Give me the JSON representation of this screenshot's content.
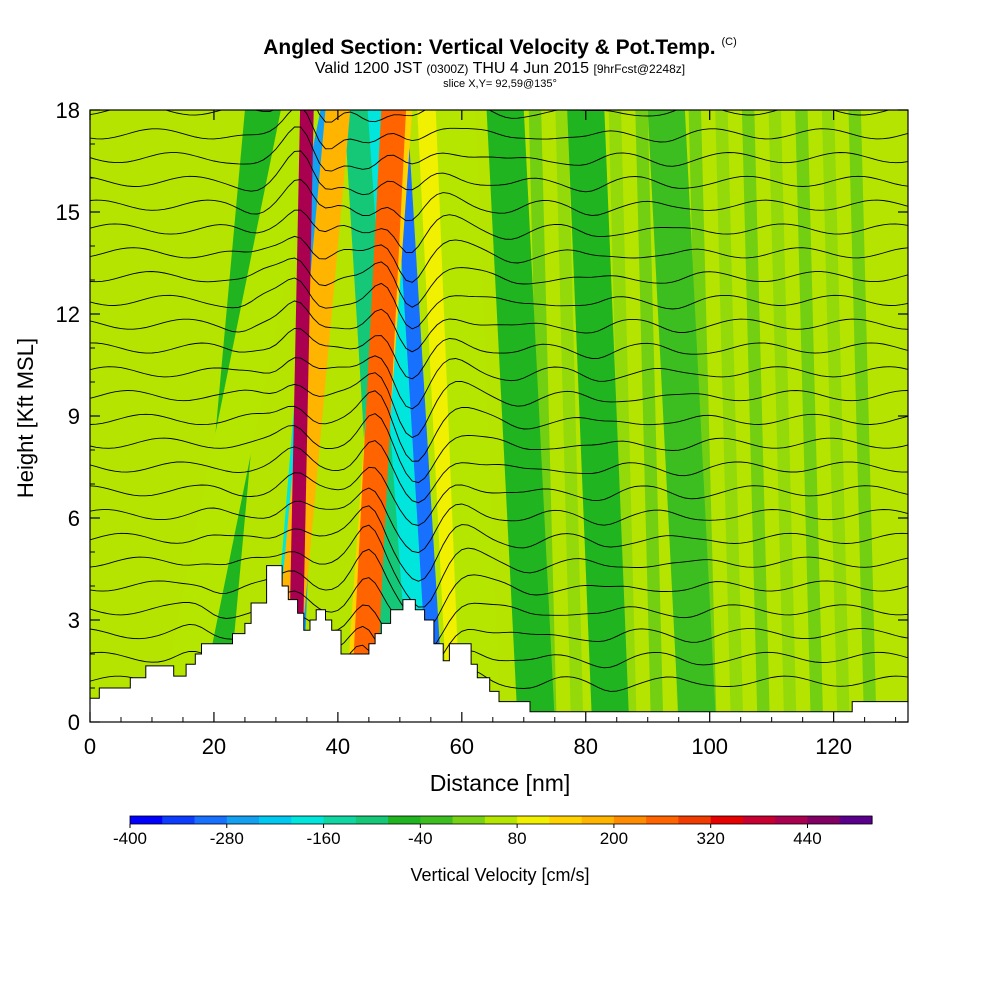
{
  "header": {
    "title": "Angled Section: Vertical Velocity & Pot.Temp.",
    "title_units": "(C)",
    "valid_prefix": "Valid 1200 JST",
    "valid_utc": "(0300Z)",
    "valid_date": "THU 4 Jun 2015",
    "forecast_tag": "[9hrFcst@2248z]",
    "slice": "slice X,Y= 92,59@135°"
  },
  "chart_data": {
    "type": "heatmap",
    "xlabel": "Distance [nm]",
    "ylabel": "Height [Kft MSL]",
    "xlim": [
      0,
      132
    ],
    "ylim": [
      0,
      18
    ],
    "xticks": [
      0,
      20,
      40,
      60,
      80,
      100,
      120
    ],
    "yticks": [
      0,
      3,
      6,
      9,
      12,
      15,
      18
    ],
    "background_color": "#b5e400",
    "contour_color": "#000000",
    "updraft_bands": [
      {
        "x_low": 14,
        "x_top": 34,
        "value": 60
      },
      {
        "x_low": 31,
        "x_top": 40,
        "value": 160
      },
      {
        "x_low": 33,
        "x_top": 35,
        "value": 420
      },
      {
        "x_low": 43,
        "x_top": 50,
        "value": 140
      },
      {
        "x_low": 44,
        "x_top": 49,
        "value": 240
      },
      {
        "x_low": 61,
        "x_top": 56,
        "value": 80
      },
      {
        "x_low": 63,
        "x_top": 59,
        "value": 40
      }
    ],
    "downdraft_bands": [
      {
        "x_low": 19,
        "x_top": 28,
        "value": -60
      },
      {
        "x_low": 31,
        "x_top": 39,
        "value": -180
      },
      {
        "x_low": 33,
        "x_top": 37,
        "value": -260
      },
      {
        "x_low": 50,
        "x_top": 44,
        "value": -100
      },
      {
        "x_low": 54,
        "x_top": 47,
        "value": -180
      },
      {
        "x_low": 56,
        "x_top": 50,
        "value": -300
      },
      {
        "x_low": 72,
        "x_top": 67,
        "value": -60
      },
      {
        "x_low": 84,
        "x_top": 80,
        "value": -60
      },
      {
        "x_low": 98,
        "x_top": 93,
        "value": -40
      }
    ],
    "terrain": [
      {
        "x": 0.0,
        "h": 0.7
      },
      {
        "x": 1.5,
        "h": 0.7
      },
      {
        "x": 1.5,
        "h": 1.0
      },
      {
        "x": 6.5,
        "h": 1.0
      },
      {
        "x": 6.5,
        "h": 1.3
      },
      {
        "x": 9.0,
        "h": 1.3
      },
      {
        "x": 9.0,
        "h": 1.65
      },
      {
        "x": 13.5,
        "h": 1.65
      },
      {
        "x": 13.5,
        "h": 1.35
      },
      {
        "x": 15.5,
        "h": 1.35
      },
      {
        "x": 15.5,
        "h": 1.7
      },
      {
        "x": 17.0,
        "h": 1.7
      },
      {
        "x": 17.0,
        "h": 2.0
      },
      {
        "x": 18.0,
        "h": 2.0
      },
      {
        "x": 18.0,
        "h": 2.3
      },
      {
        "x": 23.0,
        "h": 2.3
      },
      {
        "x": 23.0,
        "h": 2.6
      },
      {
        "x": 25.0,
        "h": 2.6
      },
      {
        "x": 25.0,
        "h": 2.9
      },
      {
        "x": 26.0,
        "h": 2.9
      },
      {
        "x": 26.0,
        "h": 3.5
      },
      {
        "x": 28.5,
        "h": 3.5
      },
      {
        "x": 28.5,
        "h": 4.6
      },
      {
        "x": 31.0,
        "h": 4.6
      },
      {
        "x": 31.0,
        "h": 4.0
      },
      {
        "x": 32.0,
        "h": 4.0
      },
      {
        "x": 32.0,
        "h": 3.6
      },
      {
        "x": 33.5,
        "h": 3.6
      },
      {
        "x": 33.5,
        "h": 3.2
      },
      {
        "x": 34.5,
        "h": 3.2
      },
      {
        "x": 34.5,
        "h": 2.7
      },
      {
        "x": 35.5,
        "h": 2.7
      },
      {
        "x": 35.5,
        "h": 3.0
      },
      {
        "x": 36.5,
        "h": 3.0
      },
      {
        "x": 36.5,
        "h": 3.3
      },
      {
        "x": 38.0,
        "h": 3.3
      },
      {
        "x": 38.0,
        "h": 3.0
      },
      {
        "x": 39.0,
        "h": 3.0
      },
      {
        "x": 39.0,
        "h": 2.7
      },
      {
        "x": 40.5,
        "h": 2.7
      },
      {
        "x": 40.5,
        "h": 2.0
      },
      {
        "x": 45.0,
        "h": 2.0
      },
      {
        "x": 45.0,
        "h": 2.3
      },
      {
        "x": 46.0,
        "h": 2.3
      },
      {
        "x": 46.0,
        "h": 2.6
      },
      {
        "x": 47.0,
        "h": 2.6
      },
      {
        "x": 47.0,
        "h": 2.9
      },
      {
        "x": 48.5,
        "h": 2.9
      },
      {
        "x": 48.5,
        "h": 3.3
      },
      {
        "x": 50.5,
        "h": 3.3
      },
      {
        "x": 50.5,
        "h": 3.6
      },
      {
        "x": 52.5,
        "h": 3.6
      },
      {
        "x": 52.5,
        "h": 3.3
      },
      {
        "x": 54.0,
        "h": 3.3
      },
      {
        "x": 54.0,
        "h": 3.0
      },
      {
        "x": 55.5,
        "h": 3.0
      },
      {
        "x": 55.5,
        "h": 2.3
      },
      {
        "x": 57.0,
        "h": 2.3
      },
      {
        "x": 57.0,
        "h": 1.8
      },
      {
        "x": 58.0,
        "h": 1.8
      },
      {
        "x": 58.0,
        "h": 2.3
      },
      {
        "x": 61.5,
        "h": 2.3
      },
      {
        "x": 61.5,
        "h": 1.7
      },
      {
        "x": 62.5,
        "h": 1.7
      },
      {
        "x": 62.5,
        "h": 1.3
      },
      {
        "x": 64.5,
        "h": 1.3
      },
      {
        "x": 64.5,
        "h": 0.9
      },
      {
        "x": 66.0,
        "h": 0.9
      },
      {
        "x": 66.0,
        "h": 0.6
      },
      {
        "x": 71.0,
        "h": 0.6
      },
      {
        "x": 71.0,
        "h": 0.3
      },
      {
        "x": 123.0,
        "h": 0.3
      },
      {
        "x": 123.0,
        "h": 0.6
      },
      {
        "x": 132.0,
        "h": 0.6
      }
    ],
    "colorbar": {
      "title": "Vertical Velocity [cm/s]",
      "min": -400,
      "step": 40,
      "colors": [
        "#0000ff",
        "#0c3cff",
        "#1870ff",
        "#14a0f0",
        "#00c8f0",
        "#00e6dc",
        "#10d6a2",
        "#14c878",
        "#20b420",
        "#3cbe20",
        "#78d214",
        "#b4e600",
        "#f0f000",
        "#ffd200",
        "#ffb400",
        "#ff8c00",
        "#ff6400",
        "#f03c00",
        "#e60000",
        "#c80032",
        "#aa0050",
        "#820064",
        "#5a008c"
      ],
      "tick_labels": [
        "-400",
        "-280",
        "-160",
        "-40",
        "80",
        "200",
        "320",
        "440"
      ]
    }
  }
}
